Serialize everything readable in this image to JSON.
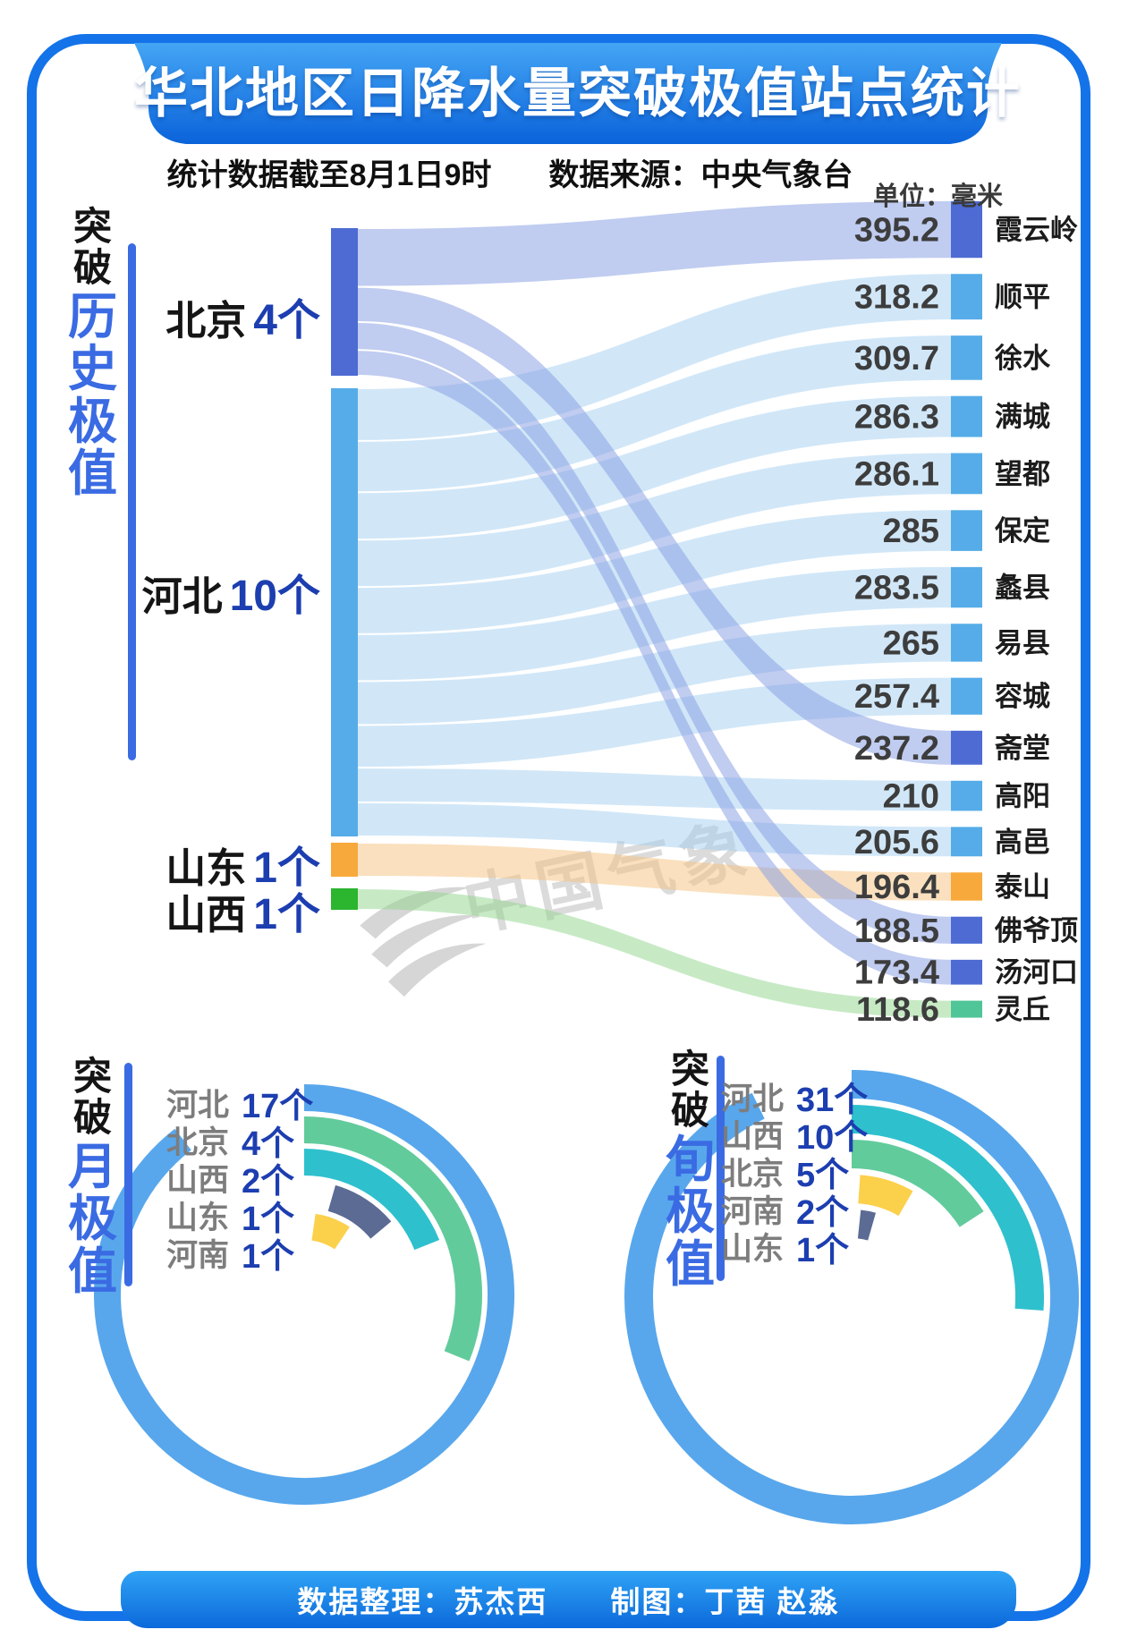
{
  "title": "华北地区日降水量突破极值站点统计",
  "subtitle_left": "统计数据截至8月1日9时",
  "subtitle_right": "数据来源：中央气象台",
  "unit_label": "单位：毫米",
  "watermark_text": "中国气象",
  "footer_text": "数据整理：苏杰西　　制图：丁茜 赵淼",
  "colors": {
    "frame_blue": "#1473E9",
    "banner_top": "#44A5F4",
    "banner_bottom": "#0B63DA",
    "highlight_blue": "#3A6BE3",
    "count_navy": "#1C3EB0",
    "beijing": "#4D6BD3",
    "hebei": "#55ACE8",
    "shandong": "#F8A93B",
    "shanxi": "#2CB52F",
    "lingqiu_node": "#4FC598"
  },
  "chart_data": [
    {
      "id": "record_sankey",
      "type": "sankey",
      "title_prefix": "突破",
      "title_highlight": "历史极值",
      "unit": "毫米",
      "sources": [
        {
          "name": "北京",
          "count_label": "4个",
          "count": 4,
          "color": "#4D6BD3",
          "ribbon": "#8CA3E4"
        },
        {
          "name": "河北",
          "count_label": "10个",
          "count": 10,
          "color": "#55ACE8",
          "ribbon": "#A3CFF2"
        },
        {
          "name": "山东",
          "count_label": "1个",
          "count": 1,
          "color": "#F8A93B",
          "ribbon": "#F6C27E"
        },
        {
          "name": "山西",
          "count_label": "1个",
          "count": 1,
          "color": "#2CB52F",
          "ribbon": "#8FD68B"
        }
      ],
      "stations": [
        {
          "name": "霞云岭",
          "value": 395.2,
          "province": "北京"
        },
        {
          "name": "顺平",
          "value": 318.2,
          "province": "河北"
        },
        {
          "name": "徐水",
          "value": 309.7,
          "province": "河北"
        },
        {
          "name": "满城",
          "value": 286.3,
          "province": "河北"
        },
        {
          "name": "望都",
          "value": 286.1,
          "province": "河北"
        },
        {
          "name": "保定",
          "value": 285,
          "province": "河北"
        },
        {
          "name": "蠡县",
          "value": 283.5,
          "province": "河北"
        },
        {
          "name": "易县",
          "value": 265,
          "province": "河北"
        },
        {
          "name": "容城",
          "value": 257.4,
          "province": "河北"
        },
        {
          "name": "斋堂",
          "value": 237.2,
          "province": "北京"
        },
        {
          "name": "高阳",
          "value": 210,
          "province": "河北"
        },
        {
          "name": "高邑",
          "value": 205.6,
          "province": "河北"
        },
        {
          "name": "泰山",
          "value": 196.4,
          "province": "山东"
        },
        {
          "name": "佛爷顶",
          "value": 188.5,
          "province": "北京"
        },
        {
          "name": "汤河口",
          "value": 173.4,
          "province": "北京"
        },
        {
          "name": "灵丘",
          "value": 118.6,
          "province": "山西",
          "node_color": "#4FC598"
        }
      ]
    },
    {
      "id": "monthly_radial",
      "type": "radial_bar",
      "title_prefix": "突破",
      "title_highlight": "月极值",
      "categories": [
        "河北",
        "北京",
        "山西",
        "山东",
        "河南"
      ],
      "values": [
        17,
        4,
        2,
        1,
        1
      ],
      "count_labels": [
        "17个",
        "4个",
        "2个",
        "1个",
        "1个"
      ],
      "colors": [
        "#58A7EC",
        "#62CB9C",
        "#2FC0CD",
        "#5B6B94",
        "#FBD04B"
      ],
      "start_deg": [
        0,
        0,
        0,
        16,
        8
      ],
      "sweep_deg": [
        322,
        112,
        68,
        34,
        26
      ]
    },
    {
      "id": "xun_radial",
      "type": "radial_bar",
      "title_prefix": "突破",
      "title_highlight": "旬极值",
      "categories": [
        "河北",
        "山西",
        "北京",
        "河南",
        "山东"
      ],
      "values": [
        31,
        10,
        5,
        2,
        1
      ],
      "count_labels": [
        "31个",
        "10个",
        "5个",
        "2个",
        "1个"
      ],
      "colors": [
        "#58A7EC",
        "#2FC0CD",
        "#62CB9C",
        "#FBD04B",
        "#5B6B94"
      ],
      "start_deg": [
        0,
        0,
        0,
        4,
        6
      ],
      "sweep_deg": [
        334,
        94,
        57,
        26,
        10
      ]
    }
  ]
}
